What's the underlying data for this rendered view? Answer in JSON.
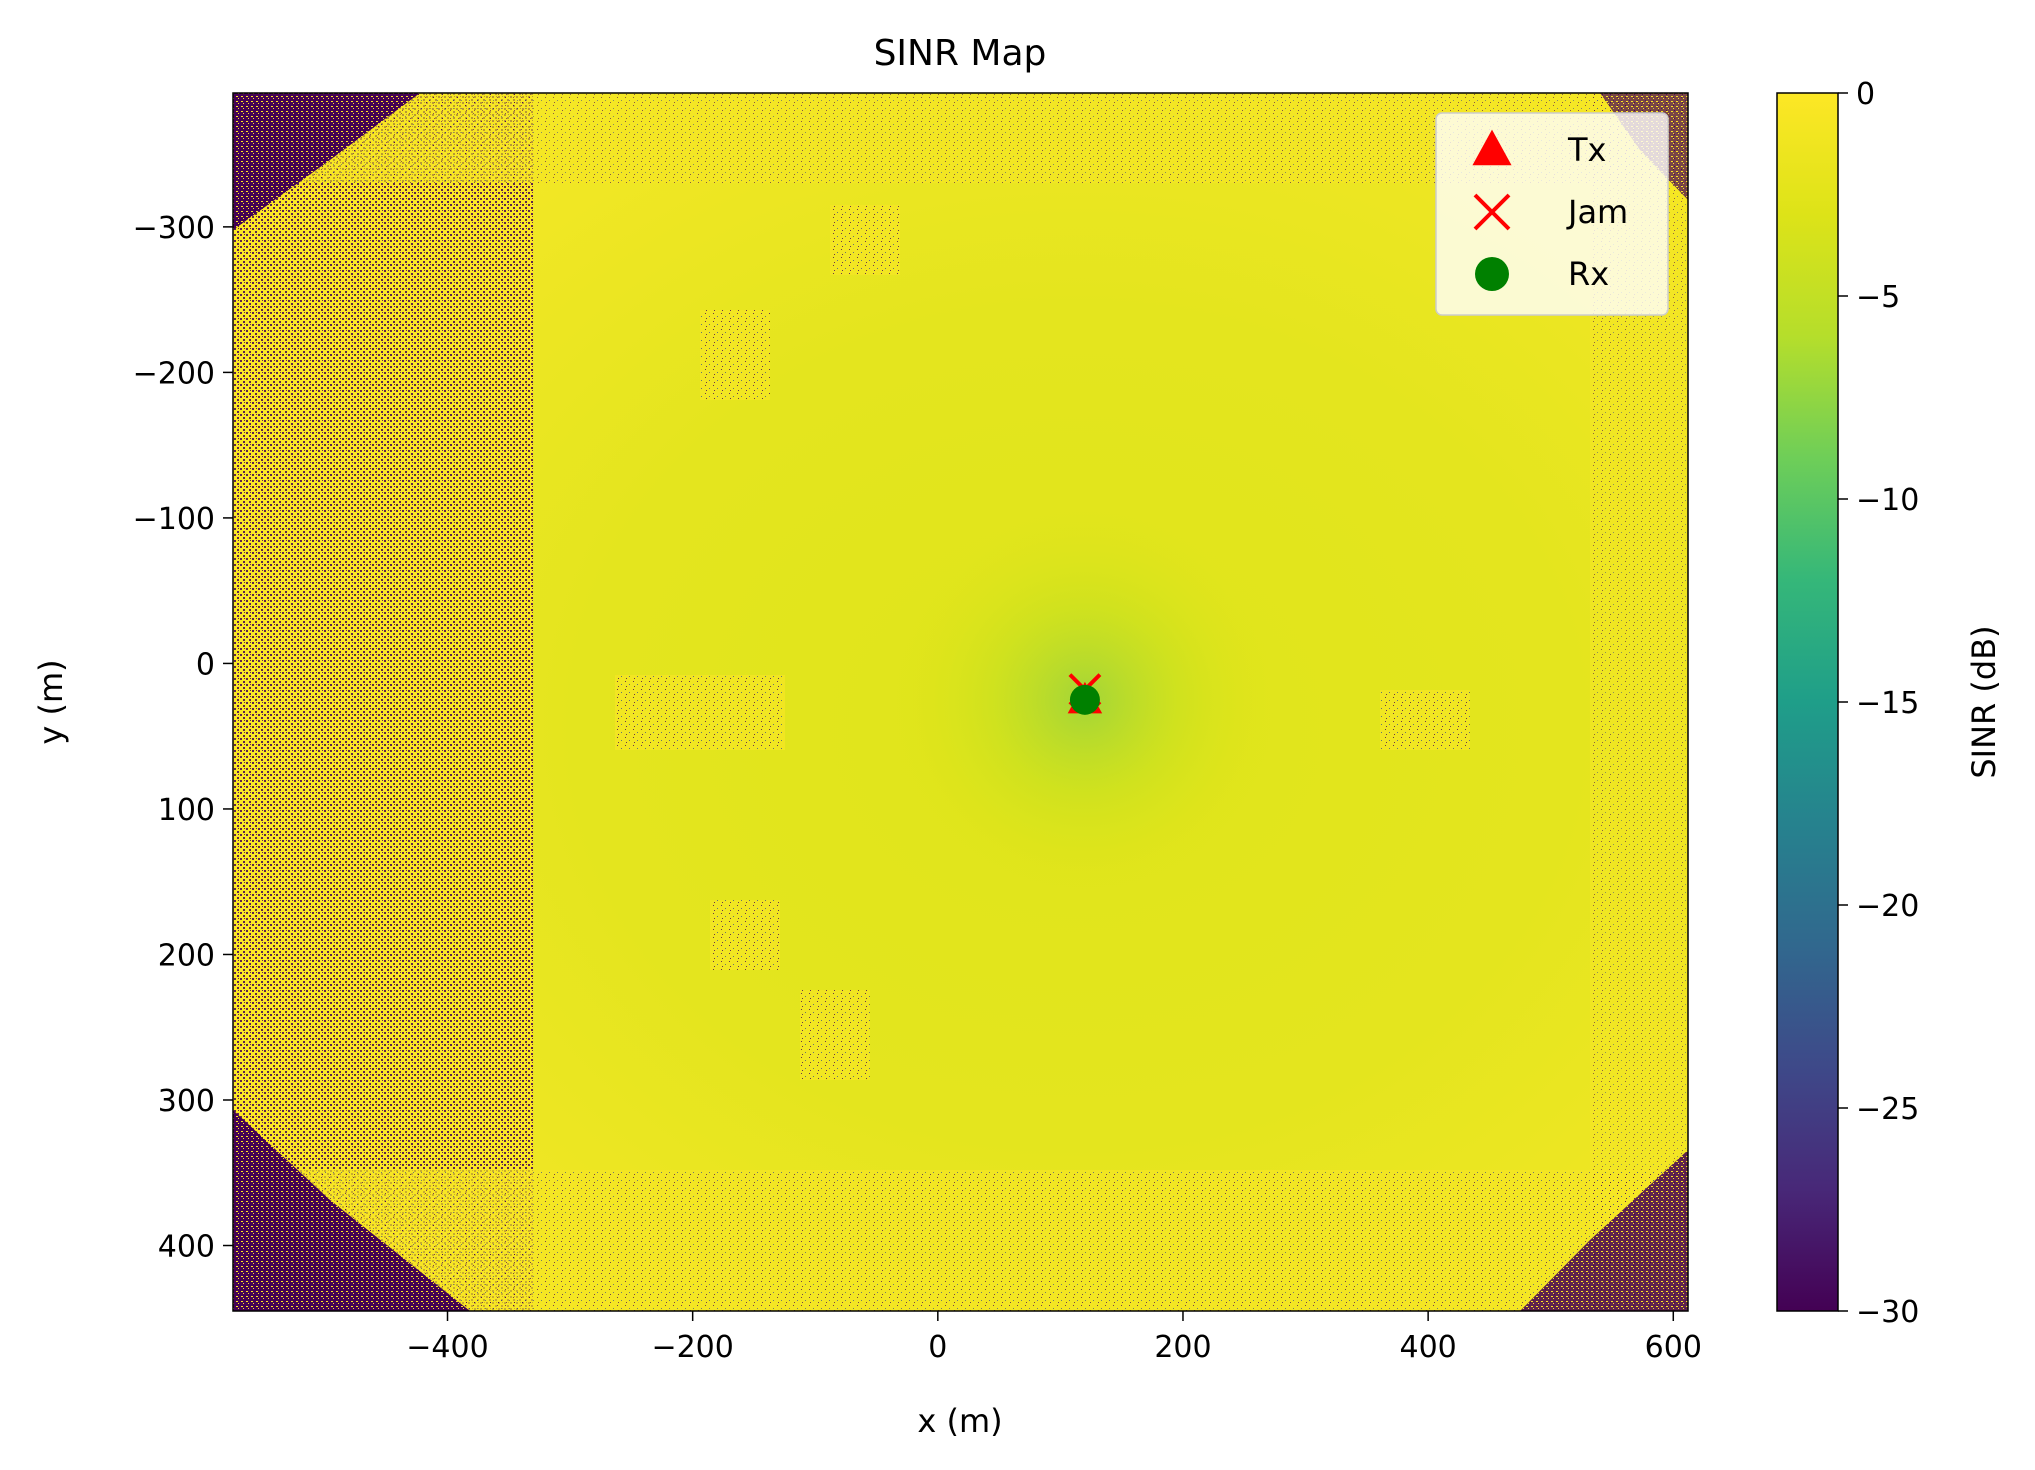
{
  "chart_data": {
    "type": "heatmap",
    "title": "SINR Map",
    "xlabel": "x (m)",
    "ylabel": "y (m)",
    "xlim": [
      -575,
      612
    ],
    "ylim": [
      445,
      -392
    ],
    "y_inverted": true,
    "xticks": [
      -400,
      -200,
      0,
      200,
      400,
      600
    ],
    "xtick_labels": [
      "−400",
      "−200",
      "0",
      "200",
      "400",
      "600"
    ],
    "yticks": [
      -300,
      -200,
      -100,
      0,
      100,
      200,
      300,
      400
    ],
    "ytick_labels": [
      "−300",
      "−200",
      "−100",
      "0",
      "100",
      "200",
      "300",
      "400"
    ],
    "colorbar": {
      "label": "SINR (dB)",
      "vmin": -30,
      "vmax": 0,
      "colormap": "viridis",
      "ticks": [
        0,
        -5,
        -10,
        -15,
        -20,
        -25,
        -30
      ],
      "tick_labels": [
        "0",
        "−5",
        "−10",
        "−15",
        "−20",
        "−25",
        "−30"
      ]
    },
    "field_description": {
      "dominant_value_db": -1,
      "center_value_db": -3,
      "edge_value_db": -30
    },
    "markers": [
      {
        "name": "Tx",
        "symbol": "triangle",
        "color": "#ff0000",
        "x": 120,
        "y": 25
      },
      {
        "name": "Jam",
        "symbol": "x",
        "color": "#ff0000",
        "x": 120,
        "y": 18
      },
      {
        "name": "Rx",
        "symbol": "circle",
        "color": "#008000",
        "x": 120,
        "y": 25
      }
    ],
    "legend": {
      "position": "top-right",
      "entries": [
        "Tx",
        "Jam",
        "Rx"
      ]
    },
    "grid": false
  }
}
